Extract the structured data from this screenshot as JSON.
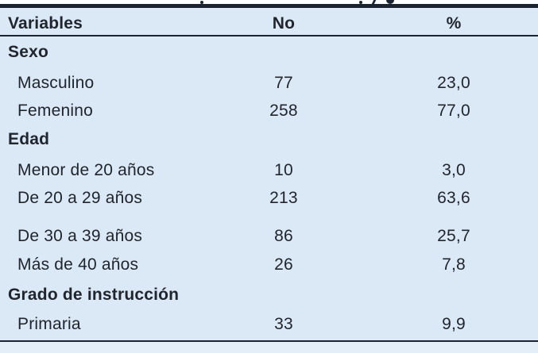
{
  "table": {
    "columns": {
      "variables": "Variables",
      "no": "No",
      "percent": "%"
    },
    "rows": [
      {
        "type": "group",
        "label": "Sexo"
      },
      {
        "type": "item",
        "label": "Masculino",
        "no": "77",
        "pct": "23,0"
      },
      {
        "type": "item",
        "label": "Femenino",
        "no": "258",
        "pct": "77,0"
      },
      {
        "type": "group",
        "label": "Edad"
      },
      {
        "type": "item",
        "label": "Menor de 20 años",
        "no": "10",
        "pct": "3,0"
      },
      {
        "type": "item",
        "label": "De 20 a 29 años",
        "no": "213",
        "pct": "63,6"
      },
      {
        "type": "item",
        "label": "De 30 a 39 años",
        "no": "86",
        "pct": "25,7"
      },
      {
        "type": "item",
        "label": "Más de 40 años",
        "no": "26",
        "pct": "7,8"
      },
      {
        "type": "group",
        "label": "Grado de instrucción"
      },
      {
        "type": "item",
        "label": "Primaria",
        "no": "33",
        "pct": "9,9"
      }
    ],
    "colors": {
      "background": "#dbe8f5",
      "footer_strip": "#e4eef9",
      "rule": "#1b2330",
      "text": "#20252e"
    }
  }
}
